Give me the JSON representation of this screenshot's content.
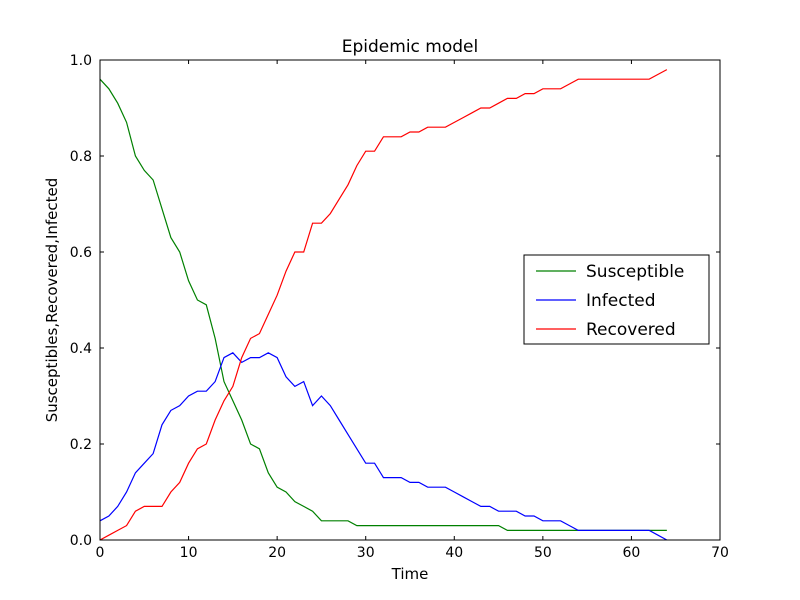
{
  "chart_data": {
    "type": "line",
    "title": "Epidemic model",
    "xlabel": "Time",
    "ylabel": "Susceptibles,Recovered,Infected",
    "xlim": [
      0,
      70
    ],
    "ylim": [
      0,
      1.0
    ],
    "xticks": [
      0,
      10,
      20,
      30,
      40,
      50,
      60,
      70
    ],
    "xtick_labels": [
      "0",
      "10",
      "20",
      "30",
      "40",
      "50",
      "60",
      "70"
    ],
    "yticks": [
      0,
      0.2,
      0.4,
      0.6,
      0.8,
      1.0
    ],
    "ytick_labels": [
      "0.0",
      "0.2",
      "0.4",
      "0.6",
      "0.8",
      "1.0"
    ],
    "grid": false,
    "legend_position": "center-right",
    "x": [
      0,
      1,
      2,
      3,
      4,
      5,
      6,
      7,
      8,
      9,
      10,
      11,
      12,
      13,
      14,
      15,
      16,
      17,
      18,
      19,
      20,
      21,
      22,
      23,
      24,
      25,
      26,
      27,
      28,
      29,
      30,
      31,
      32,
      33,
      34,
      35,
      36,
      37,
      38,
      39,
      40,
      41,
      42,
      43,
      44,
      45,
      46,
      47,
      48,
      49,
      50,
      51,
      52,
      53,
      54,
      55,
      56,
      57,
      58,
      59,
      60,
      61,
      62,
      63,
      64
    ],
    "series": [
      {
        "name": "Susceptible",
        "color": "#008000",
        "values": [
          0.96,
          0.94,
          0.91,
          0.87,
          0.8,
          0.77,
          0.75,
          0.69,
          0.63,
          0.6,
          0.54,
          0.5,
          0.49,
          0.42,
          0.33,
          0.29,
          0.25,
          0.2,
          0.19,
          0.14,
          0.11,
          0.1,
          0.08,
          0.07,
          0.06,
          0.04,
          0.04,
          0.04,
          0.04,
          0.03,
          0.03,
          0.03,
          0.03,
          0.03,
          0.03,
          0.03,
          0.03,
          0.03,
          0.03,
          0.03,
          0.03,
          0.03,
          0.03,
          0.03,
          0.03,
          0.03,
          0.02,
          0.02,
          0.02,
          0.02,
          0.02,
          0.02,
          0.02,
          0.02,
          0.02,
          0.02,
          0.02,
          0.02,
          0.02,
          0.02,
          0.02,
          0.02,
          0.02,
          0.02,
          0.02
        ]
      },
      {
        "name": "Infected",
        "color": "#0000ff",
        "values": [
          0.04,
          0.05,
          0.07,
          0.1,
          0.14,
          0.16,
          0.18,
          0.24,
          0.27,
          0.28,
          0.3,
          0.31,
          0.31,
          0.33,
          0.38,
          0.39,
          0.37,
          0.38,
          0.38,
          0.39,
          0.38,
          0.34,
          0.32,
          0.33,
          0.28,
          0.3,
          0.28,
          0.25,
          0.22,
          0.19,
          0.16,
          0.16,
          0.13,
          0.13,
          0.13,
          0.12,
          0.12,
          0.11,
          0.11,
          0.11,
          0.1,
          0.09,
          0.08,
          0.07,
          0.07,
          0.06,
          0.06,
          0.06,
          0.05,
          0.05,
          0.04,
          0.04,
          0.04,
          0.03,
          0.02,
          0.02,
          0.02,
          0.02,
          0.02,
          0.02,
          0.02,
          0.02,
          0.02,
          0.01,
          0.0
        ]
      },
      {
        "name": "Recovered",
        "color": "#ff0000",
        "values": [
          0.0,
          0.01,
          0.02,
          0.03,
          0.06,
          0.07,
          0.07,
          0.07,
          0.1,
          0.12,
          0.16,
          0.19,
          0.2,
          0.25,
          0.29,
          0.32,
          0.38,
          0.42,
          0.43,
          0.47,
          0.51,
          0.56,
          0.6,
          0.6,
          0.66,
          0.66,
          0.68,
          0.71,
          0.74,
          0.78,
          0.81,
          0.81,
          0.84,
          0.84,
          0.84,
          0.85,
          0.85,
          0.86,
          0.86,
          0.86,
          0.87,
          0.88,
          0.89,
          0.9,
          0.9,
          0.91,
          0.92,
          0.92,
          0.93,
          0.93,
          0.94,
          0.94,
          0.94,
          0.95,
          0.96,
          0.96,
          0.96,
          0.96,
          0.96,
          0.96,
          0.96,
          0.96,
          0.96,
          0.97,
          0.98
        ]
      }
    ]
  }
}
